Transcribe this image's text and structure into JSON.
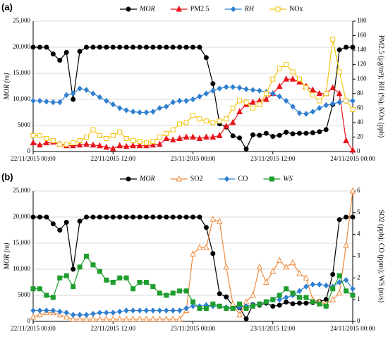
{
  "chart_data": [
    {
      "type": "line",
      "panel_label": "(a)",
      "y_label": "MOR (m)",
      "y2_label": "PM2.5 (μg/m³); RH (%); NOx (ppb)",
      "x": [
        0,
        1,
        2,
        3,
        4,
        5,
        6,
        7,
        8,
        9,
        10,
        11,
        12,
        13,
        14,
        15,
        16,
        17,
        18,
        19,
        20,
        21,
        22,
        23,
        24,
        25,
        26,
        27,
        28,
        29,
        30,
        31,
        32,
        33,
        34,
        35,
        36,
        37,
        38,
        39,
        40,
        41,
        42,
        43,
        44,
        45,
        46,
        47,
        48
      ],
      "xlim": [
        0,
        48
      ],
      "xticks": [
        {
          "value": 0,
          "label": "22/11/2015 00:00"
        },
        {
          "value": 12,
          "label": "22/11/2015 12:00"
        },
        {
          "value": 24,
          "label": "23/11/2015 00:00"
        },
        {
          "value": 36,
          "label": "23/11/2015 12:00"
        },
        {
          "value": 48,
          "label": "24/11/2015 00:00"
        }
      ],
      "ylim": [
        0,
        25000
      ],
      "yticks": [
        0,
        5000,
        {
          "value": 10000,
          "label": "10,000"
        },
        {
          "value": 15000,
          "label": "15,000"
        },
        {
          "value": 20000,
          "label": "20,000"
        },
        {
          "value": 25000,
          "label": "25,000"
        }
      ],
      "y2lim": [
        0,
        180
      ],
      "y2ticks": [
        0,
        20,
        40,
        60,
        80,
        100,
        120,
        140,
        160,
        180
      ],
      "grid": true,
      "series": [
        {
          "name": "MOR",
          "color": "#000000",
          "marker": "circle",
          "italic": true,
          "values": [
            20000,
            20000,
            20000,
            18700,
            17500,
            19000,
            10000,
            19200,
            20000,
            20000,
            20000,
            20000,
            20000,
            20000,
            20000,
            20000,
            20000,
            20000,
            20000,
            20000,
            20000,
            20000,
            20000,
            20000,
            20000,
            20000,
            18000,
            13000,
            5300,
            4700,
            3000,
            2600,
            500,
            3200,
            3100,
            3500,
            2900,
            3100,
            3700,
            3400,
            3500,
            3500,
            3600,
            3800,
            4200,
            9000,
            19500,
            20000,
            20000
          ]
        },
        {
          "name": "PM2.5",
          "color": "#e8141b",
          "marker": "triangle",
          "axis": "y2",
          "values": [
            12,
            9,
            12,
            13,
            10,
            8,
            8,
            9,
            10,
            9,
            8,
            6,
            4,
            8,
            7,
            8,
            8,
            8,
            9,
            10,
            18,
            16,
            18,
            20,
            20,
            18,
            20,
            20,
            22,
            35,
            40,
            55,
            65,
            68,
            70,
            72,
            80,
            90,
            100,
            100,
            96,
            90,
            85,
            80,
            80,
            88,
            80,
            15,
            2
          ]
        },
        {
          "name": "RH",
          "color": "#2e7fd0",
          "marker": "diamond",
          "italic": true,
          "axis": "y2",
          "values": [
            70,
            70,
            69,
            68,
            68,
            78,
            80,
            87,
            85,
            80,
            75,
            70,
            65,
            60,
            57,
            55,
            54,
            54,
            55,
            60,
            62,
            68,
            70,
            70,
            72,
            76,
            80,
            84,
            87,
            89,
            89,
            88,
            86,
            85,
            84,
            82,
            80,
            76,
            70,
            62,
            53,
            52,
            55,
            60,
            64,
            66,
            68,
            70,
            70
          ]
        },
        {
          "name": "NOx",
          "color": "#f2c40f",
          "marker": "square",
          "open": true,
          "axis": "y2",
          "values": [
            22,
            22,
            18,
            15,
            10,
            10,
            12,
            15,
            20,
            30,
            22,
            18,
            22,
            27,
            18,
            15,
            14,
            12,
            14,
            20,
            25,
            30,
            38,
            40,
            50,
            45,
            42,
            40,
            42,
            45,
            60,
            70,
            68,
            60,
            65,
            80,
            100,
            115,
            120,
            110,
            100,
            88,
            78,
            70,
            80,
            155,
            110,
            70,
            58
          ]
        }
      ]
    },
    {
      "type": "line",
      "panel_label": "(b)",
      "y_label": "MOR (m)",
      "y2_label": "SO2 (ppb); CO (ppm); WS (m/s)",
      "x": [
        0,
        1,
        2,
        3,
        4,
        5,
        6,
        7,
        8,
        9,
        10,
        11,
        12,
        13,
        14,
        15,
        16,
        17,
        18,
        19,
        20,
        21,
        22,
        23,
        24,
        25,
        26,
        27,
        28,
        29,
        30,
        31,
        32,
        33,
        34,
        35,
        36,
        37,
        38,
        39,
        40,
        41,
        42,
        43,
        44,
        45,
        46,
        47,
        48
      ],
      "xlim": [
        0,
        48
      ],
      "xticks": [
        {
          "value": 0,
          "label": "22/11/2015 00:00"
        },
        {
          "value": 12,
          "label": "22/11/2015 12:00"
        },
        {
          "value": 24,
          "label": "23/11/2015 00:00"
        },
        {
          "value": 36,
          "label": "23/11/2015 12:00"
        },
        {
          "value": 48,
          "label": "24/11/2015 00:00"
        }
      ],
      "ylim": [
        0,
        25000
      ],
      "yticks": [
        0,
        5000,
        {
          "value": 10000,
          "label": "10,000"
        },
        {
          "value": 15000,
          "label": "15,000"
        },
        {
          "value": 20000,
          "label": "20,000"
        },
        {
          "value": 25000,
          "label": "25,000"
        }
      ],
      "y2lim": [
        0,
        6
      ],
      "y2ticks": [
        0,
        1,
        2,
        3,
        4,
        5,
        6
      ],
      "grid": true,
      "series": [
        {
          "name": "MOR",
          "color": "#000000",
          "marker": "circle",
          "italic": true,
          "values": [
            20000,
            20000,
            20000,
            18700,
            17500,
            19000,
            10000,
            19200,
            20000,
            20000,
            20000,
            20000,
            20000,
            20000,
            20000,
            20000,
            20000,
            20000,
            20000,
            20000,
            20000,
            20000,
            20000,
            20000,
            20000,
            20000,
            18000,
            13000,
            5300,
            4700,
            3000,
            2600,
            500,
            3200,
            3100,
            3500,
            2900,
            3100,
            3700,
            3400,
            3500,
            3500,
            3600,
            3800,
            4200,
            9000,
            19500,
            20000,
            20000
          ]
        },
        {
          "name": "SO2",
          "color": "#f08a3c",
          "marker": "triangle",
          "open": true,
          "axis": "y2",
          "values": [
            0.2,
            0.3,
            0.4,
            0.4,
            0.3,
            0.2,
            0.1,
            0.1,
            0.1,
            0.1,
            0.1,
            0.1,
            0.1,
            0.1,
            0.1,
            0.1,
            0.1,
            0.1,
            0.1,
            0.1,
            0.1,
            0.1,
            0.1,
            0.5,
            3.1,
            3.4,
            3.4,
            4.7,
            4.6,
            2.5,
            0.8,
            0.3,
            0.9,
            1.2,
            2.5,
            1.8,
            2.3,
            2.8,
            2.5,
            2.7,
            2.2,
            2.0,
            1.0,
            0.9,
            0.8,
            1.0,
            1.3,
            3.5,
            6.0
          ]
        },
        {
          "name": "CO",
          "color": "#2e7fd0",
          "marker": "diamond",
          "axis": "y2",
          "values": [
            0.5,
            0.5,
            0.5,
            0.5,
            0.45,
            0.4,
            0.3,
            0.3,
            0.3,
            0.35,
            0.4,
            0.4,
            0.4,
            0.45,
            0.5,
            0.5,
            0.5,
            0.5,
            0.5,
            0.5,
            0.5,
            0.5,
            0.5,
            0.6,
            0.7,
            0.7,
            0.75,
            0.7,
            0.7,
            0.65,
            0.6,
            0.65,
            0.7,
            0.75,
            0.8,
            0.9,
            1.0,
            1.0,
            1.1,
            1.2,
            1.4,
            1.6,
            1.7,
            1.7,
            1.65,
            1.6,
            1.8,
            1.9,
            1.5
          ]
        },
        {
          "name": "WS",
          "color": "#1e9e2e",
          "marker": "square",
          "italic": true,
          "axis": "y2",
          "values": [
            1.5,
            1.5,
            1.2,
            1.1,
            2.0,
            2.1,
            1.6,
            2.5,
            3.0,
            2.6,
            2.3,
            1.9,
            1.8,
            2.0,
            2.0,
            1.5,
            1.8,
            1.8,
            1.6,
            1.3,
            1.2,
            1.3,
            1.4,
            1.4,
            0.9,
            0.6,
            0.6,
            0.8,
            0.7,
            0.6,
            0.6,
            0.8,
            0.6,
            0.7,
            0.8,
            0.9,
            1.0,
            1.2,
            1.5,
            1.3,
            1.1,
            1.1,
            0.9,
            0.8,
            0.7,
            1.5,
            2.1,
            1.4,
            1.2
          ]
        }
      ]
    }
  ]
}
